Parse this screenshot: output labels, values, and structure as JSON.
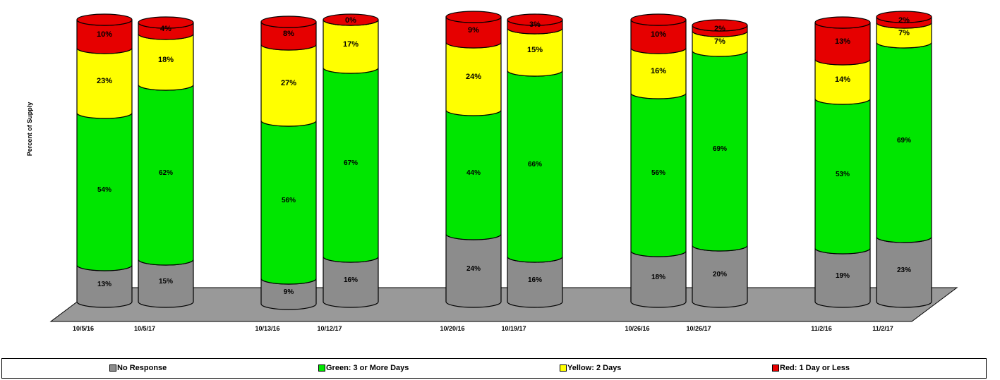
{
  "chart_data": {
    "type": "bar",
    "stacked": true,
    "percent": true,
    "three_d": true,
    "ylabel": "Percent of Supply",
    "categories": [
      "10/5/16",
      "10/5/17",
      "10/13/16",
      "10/12/17",
      "10/20/16",
      "10/19/17",
      "10/26/16",
      "10/26/17",
      "11/2/16",
      "11/2/17"
    ],
    "series": [
      {
        "name": "No Response",
        "color": "#8c8c8c",
        "values": [
          13,
          15,
          9,
          16,
          24,
          16,
          18,
          20,
          19,
          23
        ]
      },
      {
        "name": "Green: 3 or More Days",
        "color": "#00e600",
        "values": [
          54,
          62,
          56,
          67,
          44,
          66,
          56,
          69,
          53,
          69
        ]
      },
      {
        "name": "Yellow: 2 Days",
        "color": "#ffff00",
        "values": [
          23,
          18,
          27,
          17,
          24,
          15,
          16,
          7,
          14,
          7
        ]
      },
      {
        "name": "Red: 1 Day or Less",
        "color": "#e60000",
        "values": [
          10,
          4,
          8,
          0,
          9,
          3,
          10,
          2,
          13,
          2
        ]
      }
    ],
    "data_labels": [
      [
        "13%",
        "54%",
        "23%",
        "10%"
      ],
      [
        "15%",
        "62%",
        "18%",
        "4%"
      ],
      [
        "9%",
        "56%",
        "27%",
        "8%"
      ],
      [
        "16%",
        "67%",
        "17%",
        "0%"
      ],
      [
        "24%",
        "44%",
        "24%",
        "9%"
      ],
      [
        "16%",
        "66%",
        "15%",
        "3%"
      ],
      [
        "18%",
        "56%",
        "16%",
        "10%"
      ],
      [
        "20%",
        "69%",
        "7%",
        "2%"
      ],
      [
        "19%",
        "53%",
        "14%",
        "13%"
      ],
      [
        "23%",
        "69%",
        "7%",
        "2%"
      ]
    ],
    "legend_position": "bottom",
    "grid": false,
    "floor_color": "#999999",
    "ylim": [
      0,
      100
    ]
  }
}
